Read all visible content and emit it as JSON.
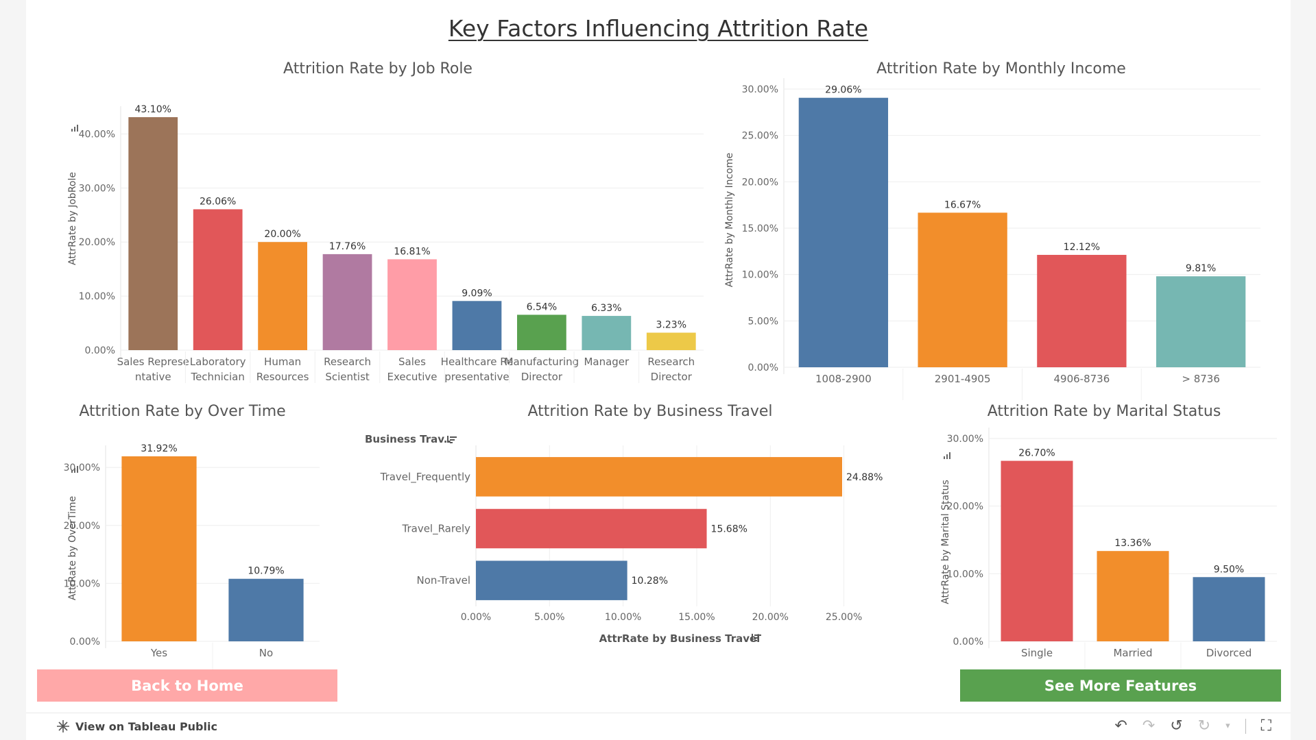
{
  "dashboard": {
    "title": "Key Factors Influencing Attrition Rate",
    "buttons": {
      "back_home": "Back to Home",
      "see_more": "See More Features"
    }
  },
  "colors": {
    "brown": "#9c7459",
    "red": "#e15759",
    "orange": "#f28e2b",
    "purple": "#b07aa1",
    "pink": "#ff9da7",
    "blue": "#4e79a7",
    "green": "#59a14f",
    "teal": "#76b7b2",
    "yellow": "#edc948",
    "back_button": "#ffa8a8",
    "more_button": "#59a14f"
  },
  "footer": {
    "view_link": "View on Tableau Public",
    "icons": [
      "undo-icon",
      "redo-icon",
      "revert-icon",
      "refresh-icon",
      "dropdown-icon",
      "fullscreen-icon"
    ]
  },
  "chart_data": [
    {
      "type": "bar",
      "title": "Attrition Rate by Job Role",
      "ylabel": "AttrRate by JobRole",
      "categories": [
        [
          "Sales Represe",
          "ntative"
        ],
        [
          "Laboratory",
          "Technician"
        ],
        [
          "Human",
          "Resources"
        ],
        [
          "Research",
          "Scientist"
        ],
        [
          "Sales",
          "Executive"
        ],
        [
          "Healthcare Re",
          "presentative"
        ],
        [
          "Manufacturing",
          "Director"
        ],
        [
          "Manager"
        ],
        [
          "Research",
          "Director"
        ]
      ],
      "values": [
        43.1,
        26.06,
        20.0,
        17.76,
        16.81,
        9.09,
        6.54,
        6.33,
        3.23
      ],
      "labels": [
        "43.10%",
        "26.06%",
        "20.00%",
        "17.76%",
        "16.81%",
        "9.09%",
        "6.54%",
        "6.33%",
        "3.23%"
      ],
      "colors": [
        "#9c7459",
        "#e15759",
        "#f28e2b",
        "#b07aa1",
        "#ff9da7",
        "#4e79a7",
        "#59a14f",
        "#76b7b2",
        "#edc948"
      ],
      "yticks": [
        0,
        10,
        20,
        30,
        40
      ],
      "yticklabels": [
        "0.00%",
        "10.00%",
        "20.00%",
        "30.00%",
        "40.00%"
      ],
      "ylim": [
        0,
        43.1
      ],
      "grid": true
    },
    {
      "type": "bar",
      "title": "Attrition Rate by Monthly Income",
      "ylabel": "AttrRate by Monthly Income",
      "categories": [
        [
          "1008-2900"
        ],
        [
          "2901-4905"
        ],
        [
          "4906-8736"
        ],
        [
          "> 8736"
        ]
      ],
      "values": [
        29.06,
        16.67,
        12.12,
        9.81
      ],
      "labels": [
        "29.06%",
        "16.67%",
        "12.12%",
        "9.81%"
      ],
      "colors": [
        "#4e79a7",
        "#f28e2b",
        "#e15759",
        "#76b7b2"
      ],
      "yticks": [
        0,
        5,
        10,
        15,
        20,
        25,
        30
      ],
      "yticklabels": [
        "0.00%",
        "5.00%",
        "10.00%",
        "15.00%",
        "20.00%",
        "25.00%",
        "30.00%"
      ],
      "ylim": [
        0,
        30
      ],
      "grid": true
    },
    {
      "type": "bar",
      "title": "Attrition Rate by Over Time",
      "ylabel": "AttrRate by OverTime",
      "categories": [
        [
          "Yes"
        ],
        [
          "No"
        ]
      ],
      "values": [
        31.92,
        10.79
      ],
      "labels": [
        "31.92%",
        "10.79%"
      ],
      "colors": [
        "#f28e2b",
        "#4e79a7"
      ],
      "yticks": [
        0,
        10,
        20,
        30
      ],
      "yticklabels": [
        "0.00%",
        "10.00%",
        "20.00%",
        "30.00%"
      ],
      "ylim": [
        0,
        31.92
      ],
      "grid": true
    },
    {
      "type": "bar",
      "orientation": "horizontal",
      "title": "Attrition Rate by Business Travel",
      "xlabel": "AttrRate by Business Travel",
      "header": "Business Trav..",
      "categories": [
        "Travel_Frequently",
        "Travel_Rarely",
        "Non-Travel"
      ],
      "values": [
        24.88,
        15.68,
        10.28
      ],
      "labels": [
        "24.88%",
        "15.68%",
        "10.28%"
      ],
      "colors": [
        "#f28e2b",
        "#e15759",
        "#4e79a7"
      ],
      "xticks": [
        0,
        5,
        10,
        15,
        20,
        25
      ],
      "xticklabels": [
        "0.00%",
        "5.00%",
        "10.00%",
        "15.00%",
        "20.00%",
        "25.00%"
      ],
      "xlim": [
        0,
        24.88
      ],
      "grid": true
    },
    {
      "type": "bar",
      "title": "Attrition Rate by Marital Status",
      "ylabel": "AttrRate by Marital Status",
      "categories": [
        [
          "Single"
        ],
        [
          "Married"
        ],
        [
          "Divorced"
        ]
      ],
      "values": [
        26.7,
        13.36,
        9.5
      ],
      "labels": [
        "26.70%",
        "13.36%",
        "9.50%"
      ],
      "colors": [
        "#e15759",
        "#f28e2b",
        "#4e79a7"
      ],
      "yticks": [
        0,
        10,
        20,
        30
      ],
      "yticklabels": [
        "0.00%",
        "10.00%",
        "20.00%",
        "30.00%"
      ],
      "ylim": [
        0,
        30
      ],
      "grid": true
    }
  ]
}
